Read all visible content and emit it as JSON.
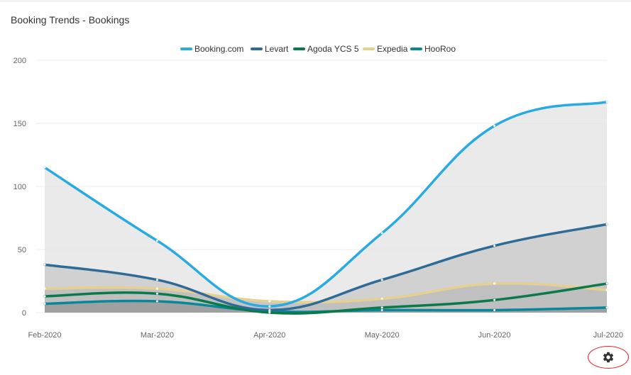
{
  "card": {
    "title": "Booking Trends - Bookings"
  },
  "chart_data": {
    "type": "area",
    "title": "",
    "xlabel": "",
    "ylabel": "",
    "categories": [
      "Feb-2020",
      "Mar-2020",
      "Apr-2020",
      "May-2020",
      "Jun-2020",
      "Jul-2020"
    ],
    "ylim": [
      0,
      200
    ],
    "yticks": [
      0,
      50,
      100,
      150,
      200
    ],
    "grid": true,
    "legend_position": "top-center",
    "series": [
      {
        "name": "Booking.com",
        "color": "#29abe2",
        "fill": "#e6e6e6",
        "values": [
          115,
          57,
          5,
          63,
          148,
          167
        ]
      },
      {
        "name": "Levart",
        "color": "#2e6b97",
        "fill": "#cccccc",
        "values": [
          38,
          26,
          2,
          26,
          53,
          70
        ]
      },
      {
        "name": "Agoda YCS 5",
        "color": "#0b7a4a",
        "fill": "#c3c3c3",
        "values": [
          13,
          15,
          0,
          4,
          10,
          23
        ]
      },
      {
        "name": "Expedia",
        "color": "#e6d08f",
        "fill": "#bdbdbd",
        "values": [
          19,
          19,
          9,
          11,
          23,
          18
        ]
      },
      {
        "name": "HooRoo",
        "color": "#08879a",
        "fill": "#9a9a9a",
        "values": [
          7,
          9,
          1,
          2,
          2,
          4
        ]
      }
    ]
  },
  "controls": {
    "settings_icon": "gear-icon"
  }
}
